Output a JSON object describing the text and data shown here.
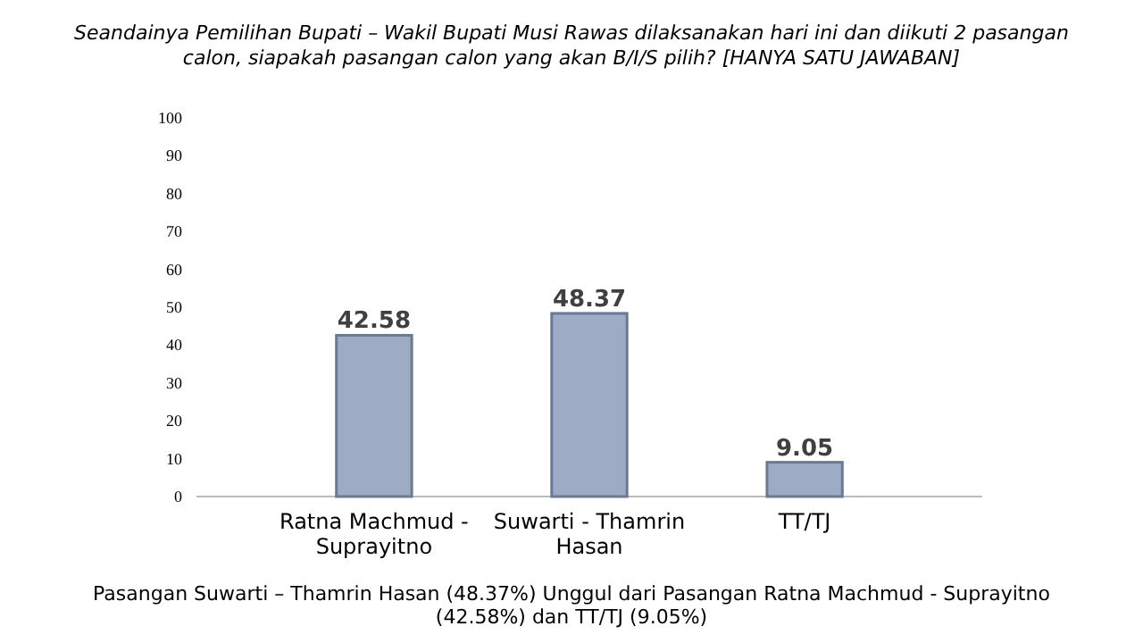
{
  "chart_data": {
    "type": "bar",
    "title": "Seandainya Pemilihan Bupati – Wakil Bupati Musi Rawas dilaksanakan hari ini dan diikuti 2 pasangan calon, siapakah pasangan calon yang akan B/I/S pilih? [HANYA SATU JAWABAN]",
    "categories": [
      "Ratna Machmud - Suprayitno",
      "Suwarti - Thamrin Hasan",
      "TT/TJ"
    ],
    "values": [
      42.58,
      48.37,
      9.05
    ],
    "color": "#9dabc4",
    "ylim": [
      0,
      100
    ],
    "yticks": [
      0,
      10,
      20,
      30,
      40,
      50,
      60,
      70,
      80,
      90,
      100
    ],
    "grid": false,
    "data_labels": true,
    "annotations": [
      "Pasangan Suwarti – Thamrin Hasan (48.37%) Unggul dari Pasangan Ratna Machmud - Suprayitno (42.58%) dan TT/TJ (9.05%)"
    ]
  }
}
